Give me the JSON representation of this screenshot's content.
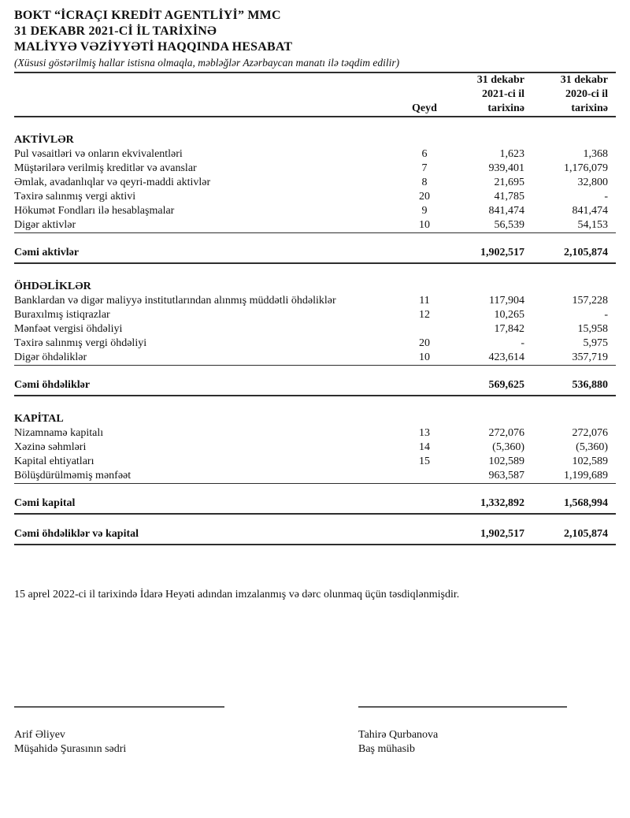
{
  "document": {
    "title_line1": "BOKT “İCRAÇI KREDİT AGENTLİYİ” MMC",
    "title_line2": "31 DEKABR 2021-Cİ İL TARİXİNƏ",
    "title_line3": "MALİYYƏ VƏZİYYƏTİ HAQQINDA HESABAT",
    "currency_note": "(Xüsusi göstərilmiş hallar istisna olmaqla, məbləğlər Azərbaycan manatı ilə təqdim edilir)"
  },
  "table": {
    "headers": {
      "note": "Qeyd",
      "period_2021": "31 dekabr\n2021-ci il\ntarixinə",
      "period_2020": "31 dekabr\n2020-ci il\ntarixinə"
    },
    "sections": [
      {
        "heading": "AKTİVLƏR",
        "rows": [
          {
            "label": "Pul vəsaitləri və onların ekvivalentləri",
            "note": "6",
            "v2021": "1,623",
            "v2020": "1,368"
          },
          {
            "label": "Müştərilərə verilmiş kreditlər və avanslar",
            "note": "7",
            "v2021": "939,401",
            "v2020": "1,176,079"
          },
          {
            "label": "Əmlak, avadanlıqlar və qeyri-maddi aktivlər",
            "note": "8",
            "v2021": "21,695",
            "v2020": "32,800"
          },
          {
            "label": "Təxirə salınmış vergi aktivi",
            "note": "20",
            "v2021": "41,785",
            "v2020": "-"
          },
          {
            "label": "Hökumət Fondları ilə hesablaşmalar",
            "note": "9",
            "v2021": "841,474",
            "v2020": "841,474"
          },
          {
            "label": "Digər aktivlər",
            "note": "10",
            "v2021": "56,539",
            "v2020": "54,153"
          }
        ],
        "total": {
          "label": "Cəmi aktivlər",
          "v2021": "1,902,517",
          "v2020": "2,105,874"
        }
      },
      {
        "heading": "ÖHDƏLİKLƏR",
        "rows": [
          {
            "label": "Banklardan və digər maliyyə institutlarından alınmış müddətli öhdəliklər",
            "note": "11",
            "v2021": "117,904",
            "v2020": "157,228"
          },
          {
            "label": "Buraxılmış istiqrazlar",
            "note": "12",
            "v2021": "10,265",
            "v2020": "-"
          },
          {
            "label": "Mənfəət vergisi öhdəliyi",
            "note": "",
            "v2021": "17,842",
            "v2020": "15,958"
          },
          {
            "label": "Təxirə salınmış vergi öhdəliyi",
            "note": "20",
            "v2021": "-",
            "v2020": "5,975"
          },
          {
            "label": "Digər öhdəliklər",
            "note": "10",
            "v2021": "423,614",
            "v2020": "357,719"
          }
        ],
        "total": {
          "label": "Cəmi öhdəliklər",
          "v2021": "569,625",
          "v2020": "536,880"
        }
      },
      {
        "heading": "KAPİTAL",
        "rows": [
          {
            "label": "Nizamnamə kapitalı",
            "note": "13",
            "v2021": "272,076",
            "v2020": "272,076"
          },
          {
            "label": "Xəzinə səhmləri",
            "note": "14",
            "v2021": "(5,360)",
            "v2020": "(5,360)"
          },
          {
            "label": "Kapital ehtiyatları",
            "note": "15",
            "v2021": "102,589",
            "v2020": "102,589"
          },
          {
            "label": "Bölüşdürülməmiş mənfəət",
            "note": "",
            "v2021": "963,587",
            "v2020": "1,199,689"
          }
        ],
        "total": {
          "label": "Cəmi kapital",
          "v2021": "1,332,892",
          "v2020": "1,568,994"
        }
      }
    ],
    "grand_total": {
      "label": "Cəmi öhdəliklər və kapital",
      "v2021": "1,902,517",
      "v2020": "2,105,874"
    }
  },
  "approval_note": "15 aprel 2022-ci il tarixində İdarə Heyəti adından imzalanmış və dərc olunmaq üçün təsdiqlənmişdir.",
  "signatures": [
    {
      "name": "Arif Əliyev",
      "title": "Müşahidə Şurasının sədri"
    },
    {
      "name": "Tahirə Qurbanova",
      "title": "Baş mühasib"
    }
  ]
}
